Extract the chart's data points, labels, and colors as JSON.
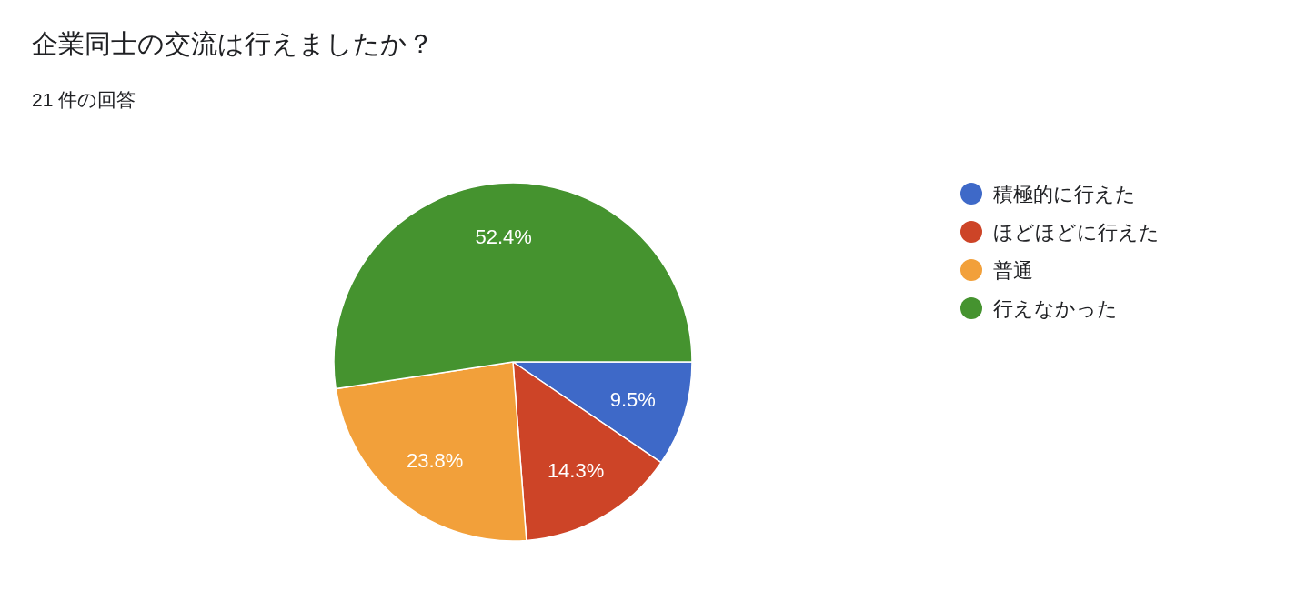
{
  "chart_data": {
    "type": "pie",
    "title": "企業同士の交流は行えましたか？",
    "subtitle": "21 件の回答",
    "categories": [
      "積極的に行えた",
      "ほどほどに行えた",
      "普通",
      "行えなかった"
    ],
    "values": [
      9.5,
      14.3,
      23.8,
      52.4
    ],
    "colors": [
      "#3e69c8",
      "#cd4427",
      "#f2a03a",
      "#45932f"
    ],
    "value_labels": [
      "9.5%",
      "14.3%",
      "23.8%",
      "52.4%"
    ],
    "legend": "right"
  }
}
